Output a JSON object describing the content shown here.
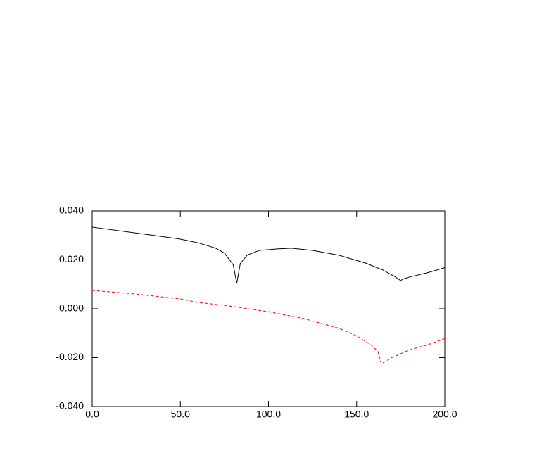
{
  "chart_data": {
    "type": "line",
    "series": [
      {
        "color": "#000000",
        "dash": "none",
        "x": [
          0,
          35,
          50,
          60,
          70,
          75,
          80,
          82,
          84,
          88,
          95,
          105,
          113,
          125,
          140,
          155,
          165,
          172,
          175,
          176,
          180,
          190,
          200
        ],
        "values": [
          0.0334,
          0.03,
          0.0285,
          0.027,
          0.0248,
          0.0228,
          0.018,
          0.0104,
          0.0185,
          0.022,
          0.0239,
          0.0245,
          0.0248,
          0.0239,
          0.0219,
          0.0187,
          0.0158,
          0.013,
          0.0115,
          0.0121,
          0.013,
          0.0147,
          0.0168
        ]
      },
      {
        "color": "#ff0000",
        "dash": "4,3",
        "x": [
          0,
          25,
          50,
          60,
          75,
          100,
          120,
          140,
          150,
          158,
          162,
          164,
          170,
          180,
          190,
          200
        ],
        "values": [
          0.0075,
          0.006,
          0.004,
          0.0026,
          0.0014,
          -0.0012,
          -0.004,
          -0.008,
          -0.0111,
          -0.0147,
          -0.0174,
          -0.0225,
          -0.02,
          -0.0168,
          -0.0148,
          -0.0122
        ]
      }
    ],
    "xlim": [
      0,
      200
    ],
    "xticks": [
      {
        "value": 0,
        "label": "0.0"
      },
      {
        "value": 50,
        "label": "50.0"
      },
      {
        "value": 100,
        "label": "100.0"
      },
      {
        "value": 150,
        "label": "150.0"
      },
      {
        "value": 200,
        "label": "200.0"
      }
    ],
    "ylim": [
      -0.04,
      0.04
    ],
    "yticks": [
      {
        "value": -0.04,
        "label": "-0.040"
      },
      {
        "value": -0.02,
        "label": "-0.020"
      },
      {
        "value": 0,
        "label": "0.000"
      },
      {
        "value": 0.02,
        "label": "0.020"
      },
      {
        "value": 0.04,
        "label": "0.040"
      }
    ],
    "grid": false
  }
}
